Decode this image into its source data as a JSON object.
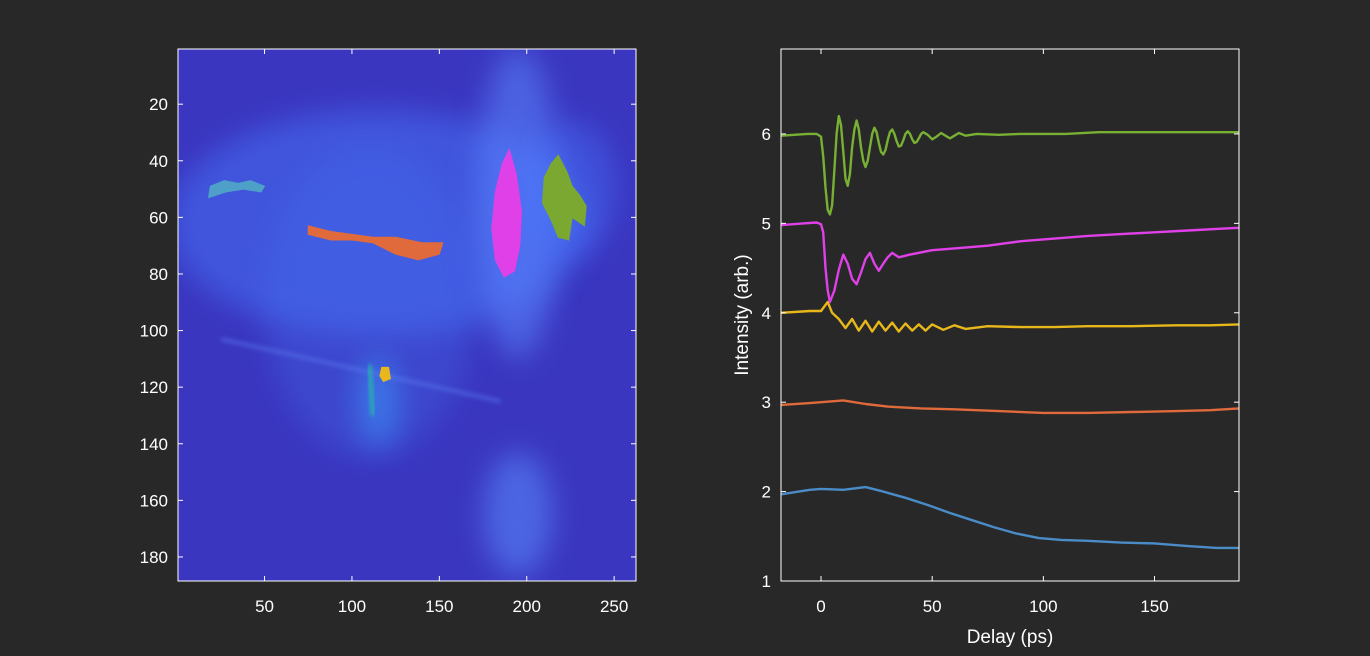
{
  "figure": {
    "background": "#282828",
    "axis_color": "#ffffff"
  },
  "chart_data": [
    {
      "type": "heatmap",
      "title": "",
      "xlabel": "",
      "ylabel": "",
      "xlim": [
        0.5,
        262.5
      ],
      "ylim": [
        0.5,
        188.5
      ],
      "y_reversed": true,
      "xticks": [
        50,
        100,
        150,
        200,
        250
      ],
      "yticks": [
        20,
        40,
        60,
        80,
        100,
        120,
        140,
        160,
        180
      ],
      "background_color": "#3a36c0",
      "features": [
        {
          "kind": "glow",
          "cx": 115,
          "cy": 62,
          "rx": 120,
          "ry": 40,
          "color": "#4a7cff",
          "opacity": 0.45
        },
        {
          "kind": "glow",
          "cx": 110,
          "cy": 90,
          "rx": 60,
          "ry": 55,
          "color": "#4470f0",
          "opacity": 0.3
        },
        {
          "kind": "glow",
          "cx": 195,
          "cy": 55,
          "rx": 24,
          "ry": 55,
          "color": "#5a86ff",
          "opacity": 0.55
        },
        {
          "kind": "glow",
          "cx": 225,
          "cy": 50,
          "rx": 26,
          "ry": 24,
          "color": "#4a78ff",
          "opacity": 0.4
        },
        {
          "kind": "glow",
          "cx": 195,
          "cy": 165,
          "rx": 20,
          "ry": 22,
          "color": "#5a8cff",
          "opacity": 0.55
        },
        {
          "kind": "glow",
          "cx": 115,
          "cy": 125,
          "rx": 12,
          "ry": 16,
          "color": "#3aa0ff",
          "opacity": 0.5
        },
        {
          "kind": "streak",
          "x1": 25,
          "y1": 103,
          "x2": 185,
          "y2": 125,
          "color": "#5a7cf0",
          "opacity": 0.5,
          "width": 4
        },
        {
          "kind": "streak",
          "x1": 0.5,
          "y1": 68,
          "x2": 262.5,
          "y2": 68,
          "color": "#5a80ff",
          "opacity": 0.7,
          "width": 2
        },
        {
          "kind": "streak",
          "x1": 25,
          "y1": 0.5,
          "x2": 25,
          "y2": 130,
          "color": "#5a80ff",
          "opacity": 0.5,
          "width": 2
        },
        {
          "kind": "streak",
          "x1": 110,
          "y1": 112,
          "x2": 112,
          "y2": 130,
          "color": "#20c8a0",
          "opacity": 0.8,
          "width": 4
        }
      ],
      "regions": [
        {
          "name": "blue",
          "color": "#4ea0c8",
          "points": [
            [
              19,
              49
            ],
            [
              27,
              47
            ],
            [
              35,
              48
            ],
            [
              42,
              47
            ],
            [
              50,
              49
            ],
            [
              48,
              51
            ],
            [
              38,
              50
            ],
            [
              28,
              51
            ],
            [
              18,
              53
            ]
          ]
        },
        {
          "name": "orange",
          "color": "#e06a3c",
          "points": [
            [
              75,
              63
            ],
            [
              88,
              65
            ],
            [
              100,
              66
            ],
            [
              112,
              67
            ],
            [
              125,
              67
            ],
            [
              140,
              69
            ],
            [
              152,
              69
            ],
            [
              150,
              73
            ],
            [
              138,
              75
            ],
            [
              125,
              73
            ],
            [
              112,
              69
            ],
            [
              100,
              68
            ],
            [
              88,
              68
            ],
            [
              75,
              66
            ]
          ]
        },
        {
          "name": "magenta",
          "color": "#e040e8",
          "points": [
            [
              190,
              36
            ],
            [
              194,
              45
            ],
            [
              197,
              58
            ],
            [
              196,
              70
            ],
            [
              193,
              79
            ],
            [
              187,
              81
            ],
            [
              182,
              75
            ],
            [
              180,
              64
            ],
            [
              182,
              51
            ],
            [
              186,
              41
            ]
          ]
        },
        {
          "name": "green",
          "color": "#7aa830",
          "points": [
            [
              218,
              38
            ],
            [
              223,
              44
            ],
            [
              226,
              49
            ],
            [
              230,
              52
            ],
            [
              234,
              56
            ],
            [
              233,
              63
            ],
            [
              226,
              60
            ],
            [
              224,
              68
            ],
            [
              218,
              67
            ],
            [
              214,
              61
            ],
            [
              209,
              55
            ],
            [
              210,
              46
            ],
            [
              214,
              41
            ]
          ]
        },
        {
          "name": "yellow",
          "color": "#e8b81a",
          "points": [
            [
              117,
              113
            ],
            [
              121,
              113
            ],
            [
              122,
              117
            ],
            [
              118,
              118
            ],
            [
              116,
              116
            ]
          ]
        }
      ]
    },
    {
      "type": "line",
      "title": "",
      "xlabel": "Delay (ps)",
      "ylabel": "Intensity (arb.)",
      "xlim": [
        -18,
        188
      ],
      "ylim": [
        1,
        6.95
      ],
      "xticks": [
        0,
        50,
        100,
        150
      ],
      "yticks": [
        1,
        2,
        3,
        4,
        5,
        6
      ],
      "series": [
        {
          "color": "#4a8cc8",
          "baseline": 2,
          "values": [
            [
              -18,
              1.97
            ],
            [
              -5,
              2.02
            ],
            [
              0,
              2.03
            ],
            [
              10,
              2.02
            ],
            [
              20,
              2.05
            ],
            [
              28,
              2.0
            ],
            [
              38,
              1.93
            ],
            [
              48,
              1.85
            ],
            [
              58,
              1.76
            ],
            [
              68,
              1.68
            ],
            [
              78,
              1.6
            ],
            [
              88,
              1.53
            ],
            [
              98,
              1.48
            ],
            [
              108,
              1.46
            ],
            [
              120,
              1.45
            ],
            [
              135,
              1.43
            ],
            [
              150,
              1.42
            ],
            [
              165,
              1.39
            ],
            [
              178,
              1.37
            ],
            [
              188,
              1.37
            ]
          ]
        },
        {
          "color": "#e06a3c",
          "baseline": 3,
          "values": [
            [
              -18,
              2.97
            ],
            [
              -5,
              2.99
            ],
            [
              0,
              3.0
            ],
            [
              10,
              3.02
            ],
            [
              20,
              2.98
            ],
            [
              30,
              2.95
            ],
            [
              45,
              2.93
            ],
            [
              60,
              2.92
            ],
            [
              80,
              2.9
            ],
            [
              100,
              2.88
            ],
            [
              120,
              2.88
            ],
            [
              140,
              2.89
            ],
            [
              160,
              2.9
            ],
            [
              175,
              2.91
            ],
            [
              188,
              2.93
            ]
          ]
        },
        {
          "color": "#e8b81a",
          "baseline": 4,
          "values": [
            [
              -18,
              4.0
            ],
            [
              -5,
              4.02
            ],
            [
              0,
              4.02
            ],
            [
              3,
              4.12
            ],
            [
              5,
              4.0
            ],
            [
              8,
              3.93
            ],
            [
              11,
              3.83
            ],
            [
              14,
              3.93
            ],
            [
              17,
              3.8
            ],
            [
              20,
              3.91
            ],
            [
              23,
              3.79
            ],
            [
              26,
              3.9
            ],
            [
              29,
              3.8
            ],
            [
              32,
              3.89
            ],
            [
              35,
              3.79
            ],
            [
              38,
              3.88
            ],
            [
              41,
              3.8
            ],
            [
              44,
              3.87
            ],
            [
              47,
              3.8
            ],
            [
              50,
              3.87
            ],
            [
              55,
              3.81
            ],
            [
              60,
              3.86
            ],
            [
              65,
              3.82
            ],
            [
              75,
              3.85
            ],
            [
              90,
              3.84
            ],
            [
              105,
              3.84
            ],
            [
              120,
              3.85
            ],
            [
              140,
              3.85
            ],
            [
              160,
              3.86
            ],
            [
              175,
              3.86
            ],
            [
              188,
              3.87
            ]
          ]
        },
        {
          "color": "#e040e8",
          "baseline": 5,
          "values": [
            [
              -18,
              4.98
            ],
            [
              -8,
              5.0
            ],
            [
              -2,
              5.01
            ],
            [
              0,
              4.99
            ],
            [
              1,
              4.9
            ],
            [
              2,
              4.5
            ],
            [
              3,
              4.25
            ],
            [
              4,
              4.12
            ],
            [
              6,
              4.25
            ],
            [
              8,
              4.48
            ],
            [
              10,
              4.65
            ],
            [
              12,
              4.55
            ],
            [
              14,
              4.38
            ],
            [
              16,
              4.32
            ],
            [
              18,
              4.45
            ],
            [
              20,
              4.6
            ],
            [
              22,
              4.67
            ],
            [
              24,
              4.55
            ],
            [
              26,
              4.47
            ],
            [
              28,
              4.55
            ],
            [
              30,
              4.62
            ],
            [
              32,
              4.67
            ],
            [
              35,
              4.62
            ],
            [
              40,
              4.65
            ],
            [
              50,
              4.7
            ],
            [
              60,
              4.72
            ],
            [
              75,
              4.75
            ],
            [
              90,
              4.8
            ],
            [
              105,
              4.83
            ],
            [
              120,
              4.86
            ],
            [
              135,
              4.88
            ],
            [
              150,
              4.9
            ],
            [
              165,
              4.92
            ],
            [
              180,
              4.94
            ],
            [
              188,
              4.95
            ]
          ]
        },
        {
          "color": "#78b034",
          "baseline": 6,
          "values": [
            [
              -18,
              5.98
            ],
            [
              -6,
              6.0
            ],
            [
              -2,
              6.0
            ],
            [
              0,
              5.97
            ],
            [
              1,
              5.75
            ],
            [
              2,
              5.4
            ],
            [
              3,
              5.15
            ],
            [
              4,
              5.1
            ],
            [
              5,
              5.2
            ],
            [
              6,
              5.6
            ],
            [
              7,
              6.0
            ],
            [
              8,
              6.2
            ],
            [
              9,
              6.1
            ],
            [
              10,
              5.8
            ],
            [
              11,
              5.5
            ],
            [
              12,
              5.42
            ],
            [
              13,
              5.55
            ],
            [
              14,
              5.85
            ],
            [
              15,
              6.05
            ],
            [
              16,
              6.15
            ],
            [
              17,
              6.05
            ],
            [
              18,
              5.85
            ],
            [
              19,
              5.7
            ],
            [
              20,
              5.63
            ],
            [
              21,
              5.7
            ],
            [
              22,
              5.85
            ],
            [
              23,
              6.0
            ],
            [
              24,
              6.07
            ],
            [
              25,
              6.02
            ],
            [
              26,
              5.9
            ],
            [
              27,
              5.8
            ],
            [
              28,
              5.77
            ],
            [
              29,
              5.82
            ],
            [
              30,
              5.93
            ],
            [
              31,
              6.02
            ],
            [
              32,
              6.05
            ],
            [
              33,
              6.0
            ],
            [
              34,
              5.92
            ],
            [
              35,
              5.86
            ],
            [
              36,
              5.87
            ],
            [
              37,
              5.93
            ],
            [
              38,
              6.0
            ],
            [
              39,
              6.03
            ],
            [
              40,
              6.0
            ],
            [
              41,
              5.94
            ],
            [
              42,
              5.9
            ],
            [
              43,
              5.91
            ],
            [
              44,
              5.95
            ],
            [
              45,
              6.0
            ],
            [
              46,
              6.02
            ],
            [
              48,
              5.99
            ],
            [
              50,
              5.94
            ],
            [
              52,
              5.97
            ],
            [
              54,
              6.01
            ],
            [
              56,
              5.98
            ],
            [
              58,
              5.95
            ],
            [
              60,
              5.98
            ],
            [
              62,
              6.01
            ],
            [
              65,
              5.98
            ],
            [
              70,
              6.0
            ],
            [
              80,
              5.99
            ],
            [
              90,
              6.0
            ],
            [
              100,
              6.0
            ],
            [
              110,
              6.0
            ],
            [
              125,
              6.02
            ],
            [
              140,
              6.02
            ],
            [
              155,
              6.02
            ],
            [
              170,
              6.02
            ],
            [
              188,
              6.02
            ]
          ]
        }
      ]
    }
  ]
}
